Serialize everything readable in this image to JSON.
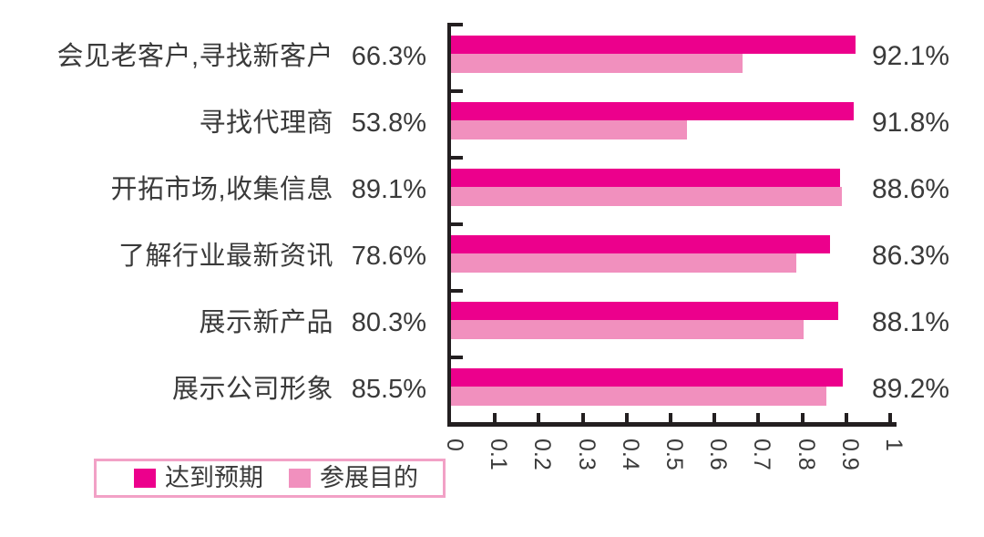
{
  "chart_data": {
    "type": "bar",
    "orientation": "horizontal",
    "title": "",
    "xlabel": "",
    "ylabel": "",
    "categories": [
      "会见老客户,寻找新客户",
      "寻找代理商",
      "开拓市场,收集信息",
      "了解行业最新资讯",
      "展示新产品",
      "展示公司形象"
    ],
    "series": [
      {
        "name": "达到预期",
        "color": "#EC008C",
        "values": [
          0.921,
          0.918,
          0.886,
          0.863,
          0.881,
          0.892
        ],
        "labels": [
          "92.1%",
          "91.8%",
          "88.6%",
          "86.3%",
          "88.1%",
          "89.2%"
        ],
        "label_side": "right"
      },
      {
        "name": "参展目的",
        "color": "#F190BE",
        "values": [
          0.663,
          0.538,
          0.891,
          0.786,
          0.803,
          0.855
        ],
        "labels": [
          "66.3%",
          "53.8%",
          "89.1%",
          "78.6%",
          "80.3%",
          "85.5%"
        ],
        "label_side": "left"
      }
    ],
    "x_axis": {
      "range": [
        0,
        1
      ],
      "ticks": [
        "0",
        "0.1",
        "0.2",
        "0.3",
        "0.4",
        "0.5",
        "0.6",
        "0.7",
        "0.8",
        "0.9",
        "1"
      ]
    },
    "grid": false,
    "legend": {
      "position": "bottom-left",
      "items": [
        "达到预期",
        "参展目的"
      ],
      "border_color": "#F2A1C6"
    },
    "colors": {
      "axis": "#231F20",
      "text": "#3A3A3A"
    }
  }
}
